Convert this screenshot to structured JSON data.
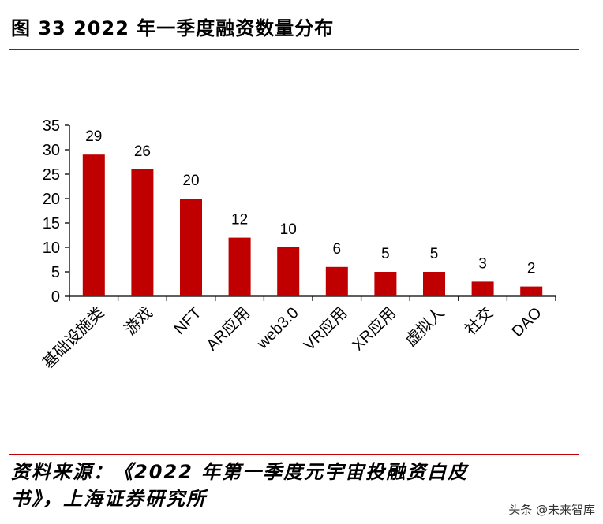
{
  "figure": {
    "title": "图 33 2022 年一季度融资数量分布",
    "source_line1": "资料来源：《2022 年第一季度元宇宙投融资白皮",
    "source_line2": "书》，上海证券研究所",
    "watermark": "头条 @未来智库"
  },
  "colors": {
    "bar": "#c00000",
    "rule": "#c00000",
    "axis": "#000000"
  },
  "chart_data": {
    "type": "bar",
    "title": "",
    "xlabel": "",
    "ylabel": "",
    "categories": [
      "基础设施类",
      "游戏",
      "NFT",
      "AR应用",
      "web3.0",
      "VR应用",
      "XR应用",
      "虚拟人",
      "社交",
      "DAO"
    ],
    "values": [
      29,
      26,
      20,
      12,
      10,
      6,
      5,
      5,
      3,
      2
    ],
    "ylim": [
      0,
      35
    ],
    "yticks": [
      0,
      5,
      10,
      15,
      20,
      25,
      30,
      35
    ],
    "data_labels": true,
    "grid": false,
    "legend": "none"
  }
}
